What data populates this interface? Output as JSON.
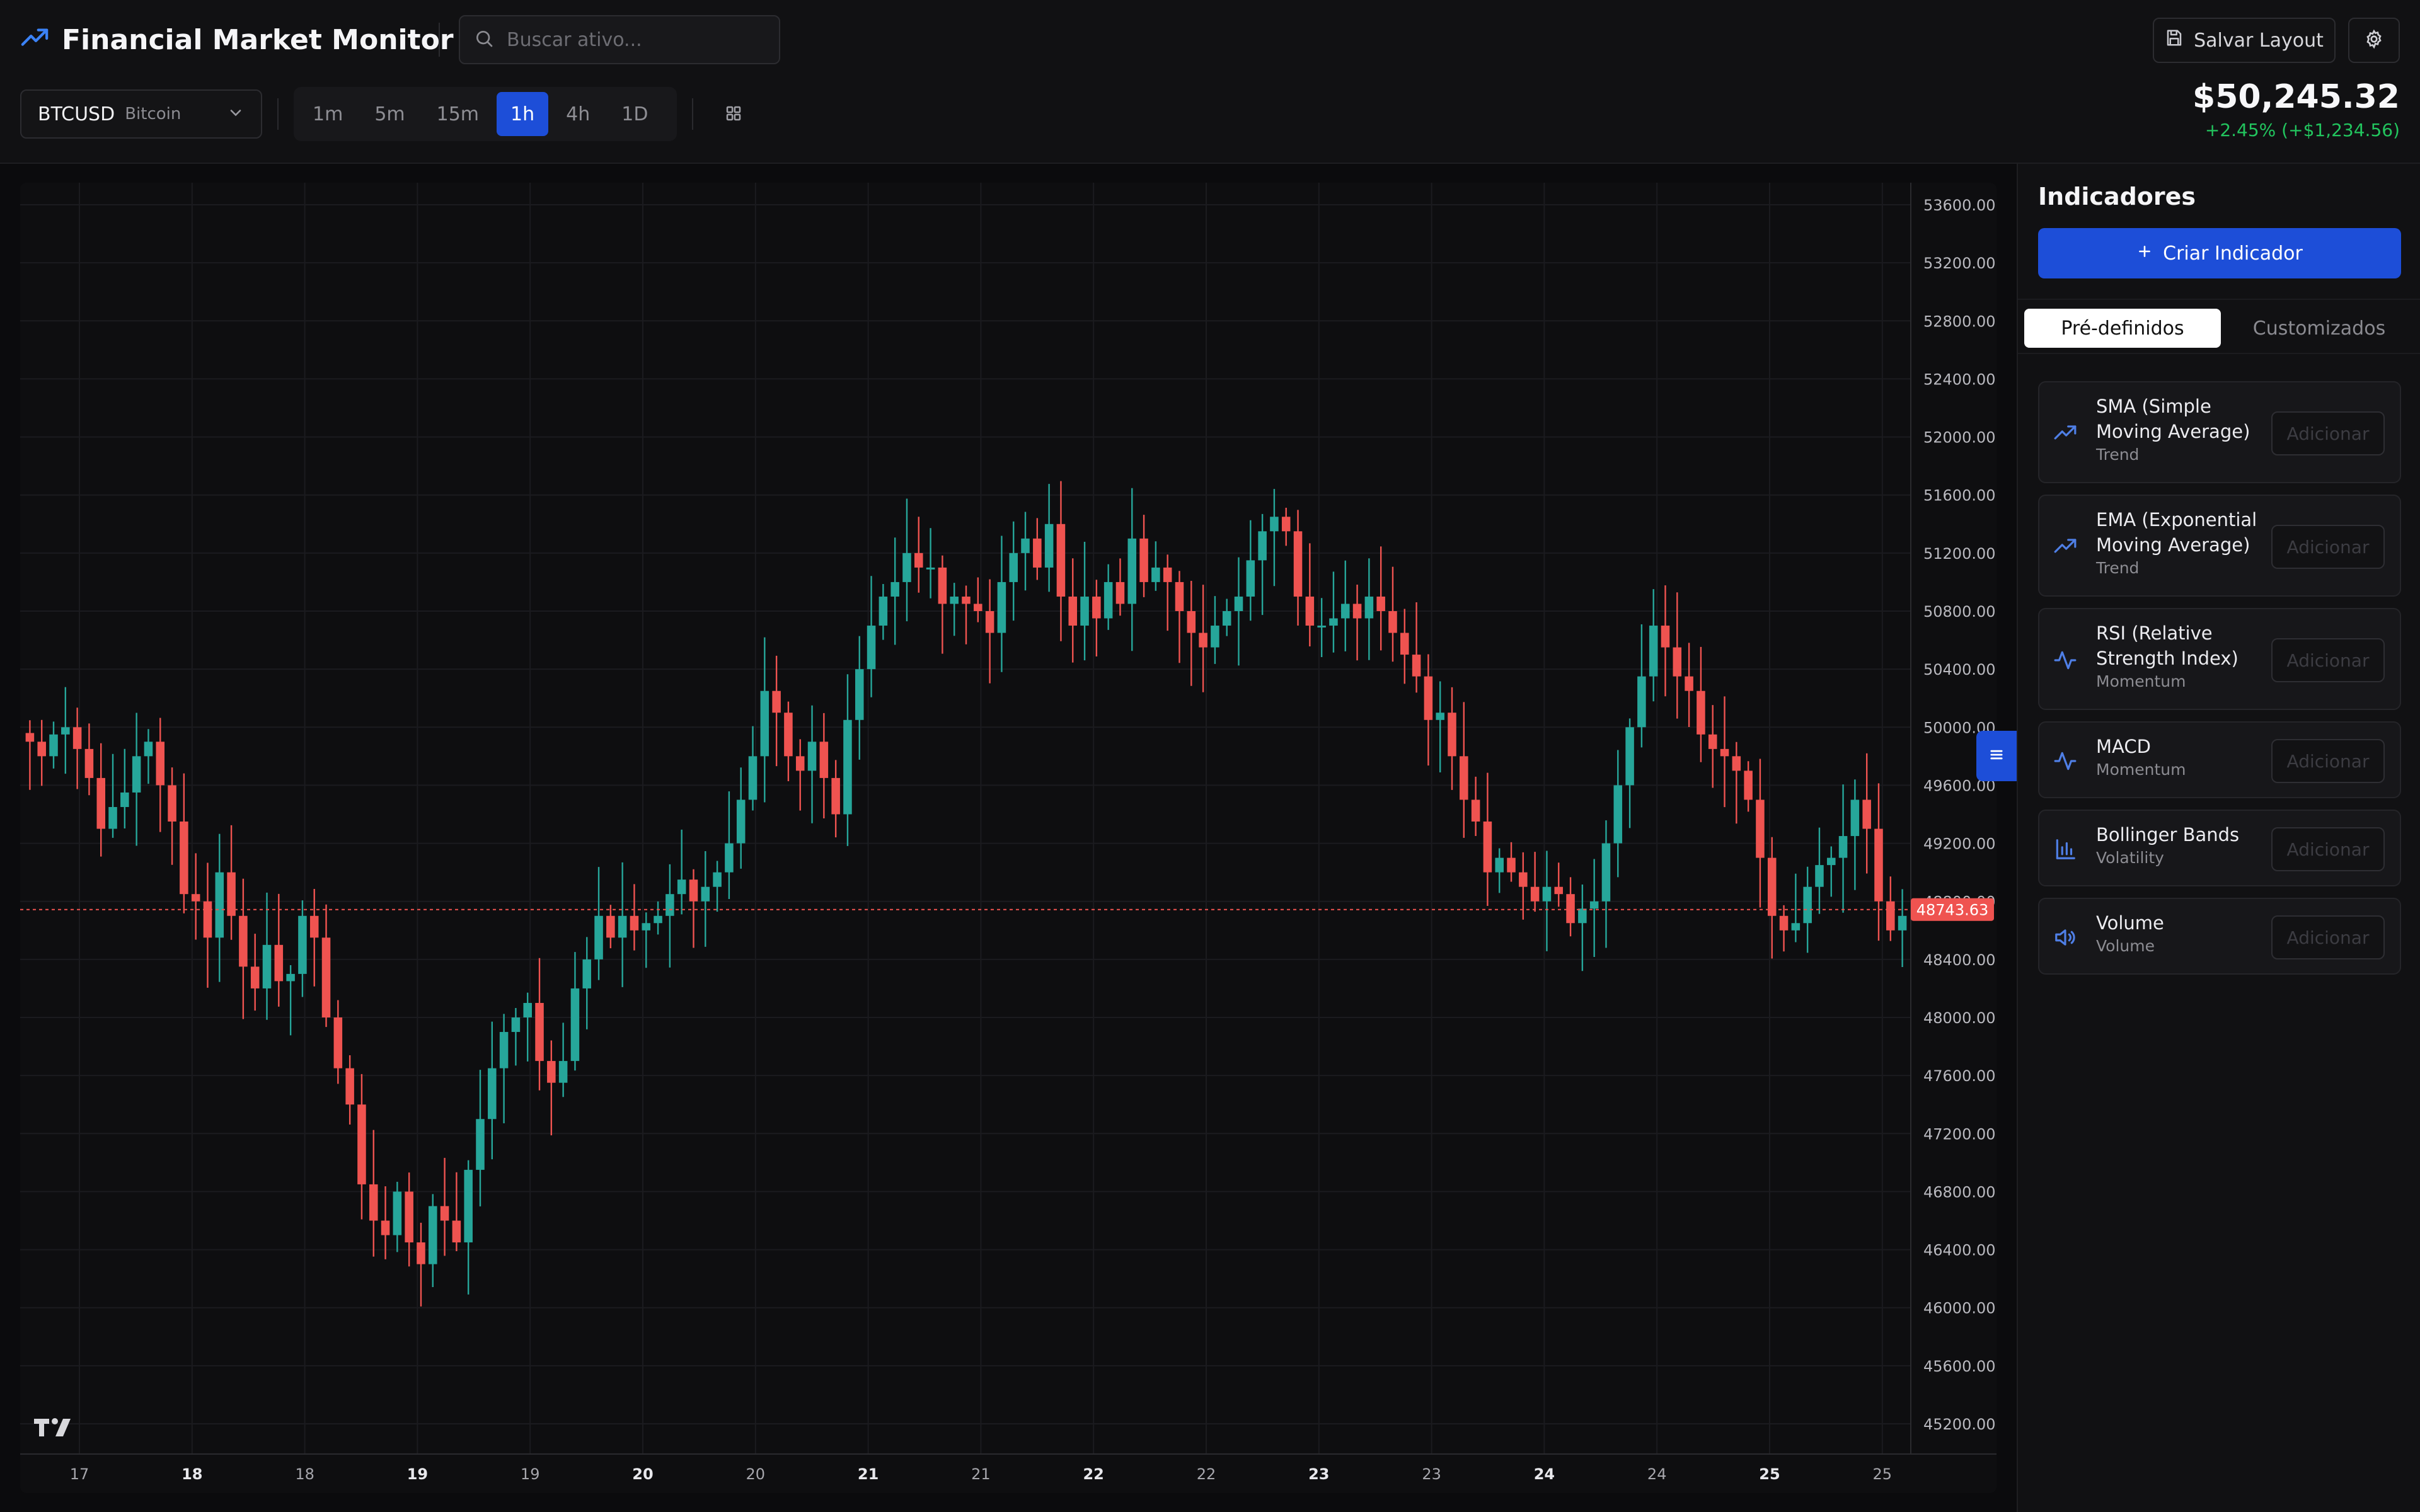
{
  "app": {
    "title": "Financial Market Monitor"
  },
  "search": {
    "placeholder": "Buscar ativo..."
  },
  "header": {
    "save_label": "Salvar Layout"
  },
  "symbol": {
    "ticker": "BTCUSD",
    "name": "Bitcoin"
  },
  "timeframes": [
    {
      "label": "1m",
      "active": false
    },
    {
      "label": "5m",
      "active": false
    },
    {
      "label": "15m",
      "active": false
    },
    {
      "label": "1h",
      "active": true
    },
    {
      "label": "4h",
      "active": false
    },
    {
      "label": "1D",
      "active": false
    }
  ],
  "quote": {
    "price": "$50,245.32",
    "change": "+2.45% (+$1,234.56)"
  },
  "colors": {
    "accent": "#1d4ed8",
    "up": "#26a69a",
    "down": "#ef5350",
    "positive_text": "#22c55e"
  },
  "sidebar": {
    "title": "Indicadores",
    "create_label": "Criar Indicador",
    "tabs": [
      {
        "label": "Pré-definidos",
        "active": true
      },
      {
        "label": "Customizados",
        "active": false
      }
    ],
    "indicators": [
      {
        "name": "SMA (Simple Moving Average)",
        "category": "Trend",
        "icon": "trending-up-icon",
        "button": "Adicionar"
      },
      {
        "name": "EMA (Exponential Moving Average)",
        "category": "Trend",
        "icon": "trending-up-icon",
        "button": "Adicionar"
      },
      {
        "name": "RSI (Relative Strength Index)",
        "category": "Momentum",
        "icon": "activity-icon",
        "button": "Adicionar"
      },
      {
        "name": "MACD",
        "category": "Momentum",
        "icon": "activity-icon",
        "button": "Adicionar"
      },
      {
        "name": "Bollinger Bands",
        "category": "Volatility",
        "icon": "bar-chart-icon",
        "button": "Adicionar"
      },
      {
        "name": "Volume",
        "category": "Volume",
        "icon": "speaker-icon",
        "button": "Adicionar"
      }
    ]
  },
  "chart_data": {
    "type": "candlestick",
    "series_hint": "BTCUSD 1h",
    "current_price_label": "48743.63",
    "current_price": 48743.63,
    "ylim": [
      45000,
      53750
    ],
    "y_ticks": [
      53600,
      53200,
      52800,
      52400,
      52000,
      51600,
      51200,
      50800,
      50400,
      50000,
      49600,
      49200,
      48800,
      48400,
      48000,
      47600,
      47200,
      46800,
      46400,
      46000,
      45600,
      45200
    ],
    "x_ticks": [
      {
        "label": "17",
        "bold": false
      },
      {
        "label": "18",
        "bold": true
      },
      {
        "label": "18",
        "bold": false
      },
      {
        "label": "19",
        "bold": true
      },
      {
        "label": "19",
        "bold": false
      },
      {
        "label": "20",
        "bold": true
      },
      {
        "label": "20",
        "bold": false
      },
      {
        "label": "21",
        "bold": true
      },
      {
        "label": "21",
        "bold": false
      },
      {
        "label": "22",
        "bold": true
      },
      {
        "label": "22",
        "bold": false
      },
      {
        "label": "23",
        "bold": true
      },
      {
        "label": "23",
        "bold": false
      },
      {
        "label": "24",
        "bold": true
      },
      {
        "label": "24",
        "bold": false
      },
      {
        "label": "25",
        "bold": true
      },
      {
        "label": "25",
        "bold": false
      }
    ],
    "closes": [
      49900,
      49800,
      49950,
      50000,
      49850,
      49650,
      49300,
      49450,
      49550,
      49800,
      49900,
      49600,
      49350,
      48850,
      48800,
      48550,
      49000,
      48700,
      48350,
      48200,
      48500,
      48250,
      48300,
      48700,
      48550,
      48000,
      47650,
      47400,
      46850,
      46600,
      46500,
      46800,
      46450,
      46300,
      46700,
      46600,
      46450,
      46950,
      47300,
      47650,
      47900,
      48000,
      48100,
      47700,
      47550,
      47700,
      48200,
      48400,
      48700,
      48550,
      48700,
      48600,
      48650,
      48700,
      48850,
      48950,
      48800,
      48900,
      49000,
      49200,
      49500,
      49800,
      50250,
      50100,
      49800,
      49700,
      49900,
      49650,
      49400,
      50050,
      50400,
      50700,
      50900,
      51000,
      51200,
      51100,
      51100,
      50850,
      50900,
      50850,
      50800,
      50650,
      51000,
      51200,
      51300,
      51100,
      51400,
      50900,
      50700,
      50900,
      50750,
      51000,
      50850,
      51300,
      51000,
      51100,
      51000,
      50800,
      50650,
      50550,
      50700,
      50800,
      50900,
      51150,
      51350,
      51450,
      51350,
      50900,
      50700,
      50700,
      50750,
      50850,
      50750,
      50900,
      50800,
      50650,
      50500,
      50350,
      50050,
      50100,
      49800,
      49500,
      49350,
      49000,
      49100,
      49000,
      48900,
      48800,
      48900,
      48850,
      48650,
      48750,
      48800,
      49200,
      49600,
      50000,
      50350,
      50700,
      50550,
      50350,
      50250,
      49950,
      49850,
      49800,
      49700,
      49500,
      49100,
      48700,
      48600,
      48650,
      48900,
      49050,
      49100,
      49250,
      49500,
      49300,
      48800,
      48600,
      48700
    ],
    "yaxis_position": "right",
    "grid": true
  }
}
